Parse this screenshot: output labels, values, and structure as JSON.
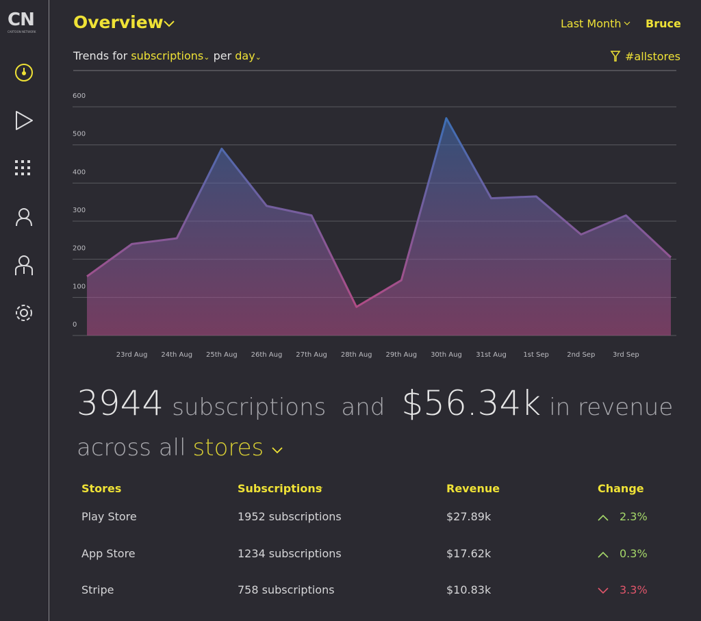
{
  "sidebar": {
    "logo": "CN",
    "logo_caption": "CARTOON NETWORK"
  },
  "header": {
    "title": "Overview",
    "period": "Last Month",
    "user": "Bruce"
  },
  "trend": {
    "prefix": "Trends for",
    "metric": "subscriptions",
    "per": "per",
    "unit": "day",
    "filter": "#allstores"
  },
  "chart_data": {
    "type": "area",
    "categories": [
      null,
      "23rd Aug",
      "24th Aug",
      "25th Aug",
      "26th Aug",
      "27th Aug",
      "28th Aug",
      "29th Aug",
      "30th Aug",
      "31st Aug",
      "1st Sep",
      "2nd Sep",
      "3rd Sep",
      null
    ],
    "values": [
      155,
      240,
      255,
      490,
      340,
      315,
      75,
      145,
      570,
      360,
      365,
      265,
      315,
      205
    ],
    "ylim": [
      0,
      600
    ],
    "yticks": [
      0,
      100,
      200,
      300,
      400,
      500,
      600
    ],
    "grid": true,
    "colors": [
      "#3d6fb5",
      "#b14c86"
    ]
  },
  "summary": {
    "count": "3944",
    "count_label": "subscriptions",
    "and": "and",
    "revenue": "$56.34k",
    "revenue_label": "in revenue",
    "across": "across all",
    "scope": "stores"
  },
  "table": {
    "headers": [
      "Stores",
      "Subscriptions",
      "Revenue",
      "Change"
    ],
    "rows": [
      {
        "store": "Play Store",
        "subscriptions": "1952 subscriptions",
        "revenue": "$27.89k",
        "change": "2.3%",
        "direction": "up"
      },
      {
        "store": "App Store",
        "subscriptions": "1234 subscriptions",
        "revenue": "$17.62k",
        "change": "0.3%",
        "direction": "up"
      },
      {
        "store": "Stripe",
        "subscriptions": "758 subscriptions",
        "revenue": "$10.83k",
        "change": "3.3%",
        "direction": "down"
      }
    ]
  }
}
